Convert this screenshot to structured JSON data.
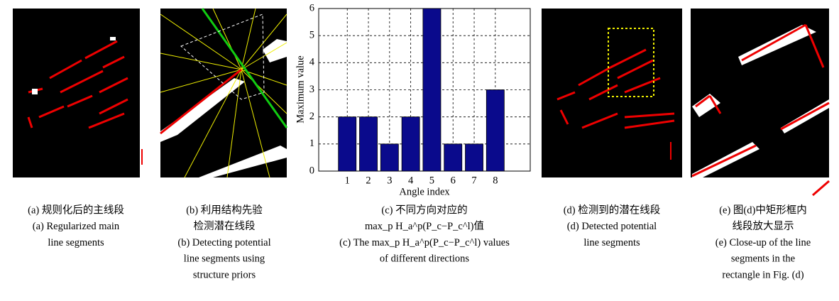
{
  "panels": [
    {
      "captions": [
        "(a) 规则化后的主线段",
        "(a) Regularized main",
        "line segments"
      ]
    },
    {
      "captions": [
        "(b) 利用结构先验",
        "检测潜在线段",
        "(b) Detecting potential",
        "line segments using",
        "structure priors"
      ]
    },
    {
      "captions": [
        "(c) 不同方向对应的",
        "max_p H_a^p(P_c−P_c^l)值",
        "(c) The max_p H_a^p(P_c−P_c^l) values",
        "of different directions"
      ]
    },
    {
      "captions": [
        "(d) 检测到的潜在线段",
        "(d) Detected potential",
        "line segments"
      ]
    },
    {
      "captions": [
        "(e) 图(d)中矩形框内",
        "线段放大显示",
        "(e) Close-up of the line",
        "segments in the",
        "rectangle in Fig. (d)"
      ]
    }
  ],
  "chart_data": {
    "type": "bar",
    "x_label": "Angle index",
    "y_label": "Maximum value",
    "categories": [
      "1",
      "2",
      "3",
      "4",
      "5",
      "6",
      "7",
      "8"
    ],
    "values": [
      2,
      2,
      1,
      2,
      6,
      1,
      1,
      3
    ],
    "color": "#0a0a8c",
    "ylim": [
      0,
      6
    ],
    "yticks": [
      0,
      1,
      2,
      3,
      4,
      5,
      6
    ],
    "grid": true
  }
}
